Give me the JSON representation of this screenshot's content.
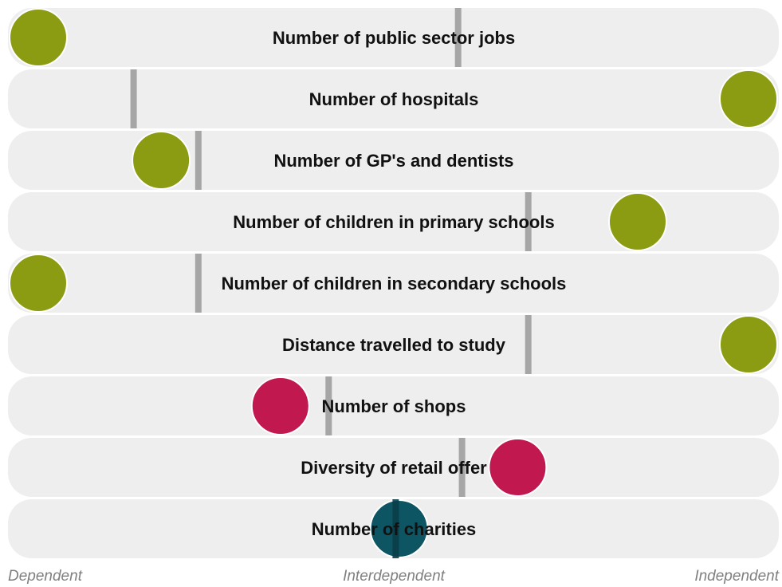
{
  "chart_data": {
    "type": "scatter",
    "scale": {
      "min": 0,
      "max": 100,
      "labels": [
        "Dependent",
        "Interdependent",
        "Independent"
      ]
    },
    "rows": [
      {
        "label": "Number of public sector jobs",
        "marker": 58.4,
        "value": 0,
        "category": "green"
      },
      {
        "label": "Number of hospitals",
        "marker": 16.3,
        "value": 100,
        "category": "green"
      },
      {
        "label": "Number of GP's and dentists",
        "marker": 24.7,
        "value": 17.3,
        "category": "green"
      },
      {
        "label": "Number of children in primary schools",
        "marker": 67.5,
        "value": 84.4,
        "category": "green"
      },
      {
        "label": "Number of children in secondary schools",
        "marker": 24.7,
        "value": 0,
        "category": "green"
      },
      {
        "label": "Distance travelled to study",
        "marker": 67.5,
        "value": 100,
        "category": "green"
      },
      {
        "label": "Number of shops",
        "marker": 41.6,
        "value": 34.1,
        "category": "red"
      },
      {
        "label": "Diversity of retail offer",
        "marker": 58.9,
        "value": 67.5,
        "category": "red"
      },
      {
        "label": "Number of charities",
        "marker": 50.3,
        "value": 50.8,
        "category": "teal"
      }
    ],
    "colors": {
      "band": "#EEEEEE",
      "marker": "#A6A6A6",
      "green": "#8C9C12",
      "red": "#C21850",
      "teal": "#0E5563",
      "circle_outline": "#FFFFFF"
    }
  }
}
